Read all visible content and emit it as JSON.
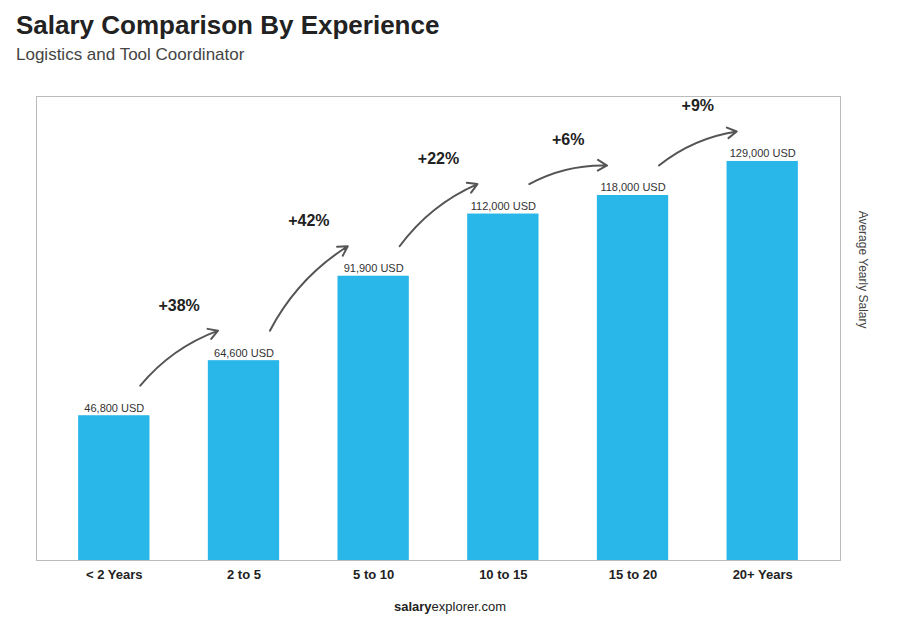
{
  "chart_data": {
    "type": "bar",
    "title": "Salary Comparison By Experience",
    "subtitle": "Logistics and Tool Coordinator",
    "ylabel": "Average Yearly Salary",
    "categories": [
      "< 2 Years",
      "2 to 5",
      "5 to 10",
      "10 to 15",
      "15 to 20",
      "20+ Years"
    ],
    "values": [
      46800,
      64600,
      91900,
      112000,
      118000,
      129000
    ],
    "value_labels": [
      "46,800 USD",
      "64,600 USD",
      "91,900 USD",
      "112,000 USD",
      "118,000 USD",
      "129,000 USD"
    ],
    "data_labels": true,
    "annotations": [
      "+38%",
      "+42%",
      "+22%",
      "+6%",
      "+9%"
    ],
    "footer": [
      "salary",
      "explorer.com"
    ],
    "color": "#29b6e8",
    "ylim": [
      0,
      150000
    ],
    "yticks": [],
    "tick_labels": "x",
    "grid": false
  }
}
